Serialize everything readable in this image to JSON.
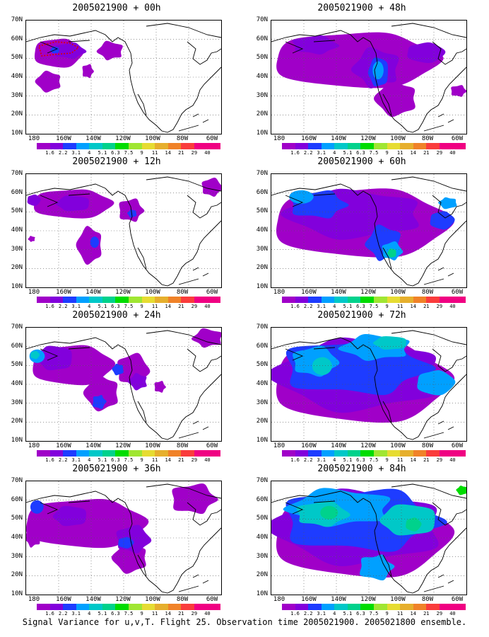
{
  "panels": [
    {
      "title": "2005021900 + 00h",
      "col": 0,
      "row": 0,
      "lead": 0
    },
    {
      "title": "2005021900 + 48h",
      "col": 1,
      "row": 0,
      "lead": 48
    },
    {
      "title": "2005021900 + 12h",
      "col": 0,
      "row": 1,
      "lead": 12
    },
    {
      "title": "2005021900 + 60h",
      "col": 1,
      "row": 1,
      "lead": 60
    },
    {
      "title": "2005021900 + 24h",
      "col": 0,
      "row": 2,
      "lead": 24
    },
    {
      "title": "2005021900 + 72h",
      "col": 1,
      "row": 2,
      "lead": 72
    },
    {
      "title": "2005021900 + 36h",
      "col": 0,
      "row": 3,
      "lead": 36
    },
    {
      "title": "2005021900 + 84h",
      "col": 1,
      "row": 3,
      "lead": 84
    }
  ],
  "lat_labels": [
    "70N",
    "60N",
    "50N",
    "40N",
    "30N",
    "20N",
    "10N"
  ],
  "lon_labels": [
    "180",
    "160W",
    "140W",
    "120W",
    "100W",
    "80W",
    "60W"
  ],
  "colorbar": {
    "labels": [
      "1.6",
      "2.2",
      "3.1",
      "4",
      "5.1",
      "6.3",
      "7.5",
      "9",
      "11",
      "14",
      "21",
      "29",
      "40"
    ],
    "colors": [
      "#a000c8",
      "#8200dc",
      "#1e3cff",
      "#00a0ff",
      "#00c8c8",
      "#00d28c",
      "#00dc00",
      "#a0e632",
      "#e6dc32",
      "#e6af2d",
      "#f08228",
      "#fa3c3c",
      "#f00082"
    ]
  },
  "caption": "Signal Variance for u,v,T. Flight 25. Observation time 2005021900. 2005021800 ensemble."
}
